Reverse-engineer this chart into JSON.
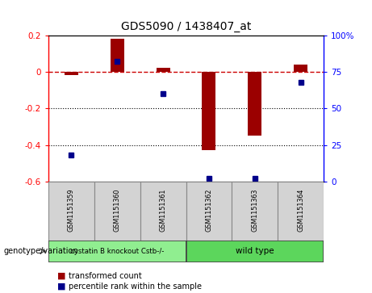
{
  "title": "GDS5090 / 1438407_at",
  "samples": [
    "GSM1151359",
    "GSM1151360",
    "GSM1151361",
    "GSM1151362",
    "GSM1151363",
    "GSM1151364"
  ],
  "red_values": [
    -0.02,
    0.18,
    0.02,
    -0.43,
    -0.35,
    0.04
  ],
  "blue_values_pct": [
    18,
    82,
    60,
    2,
    2,
    68
  ],
  "ylim_left": [
    -0.6,
    0.2
  ],
  "ylim_right": [
    0,
    100
  ],
  "yticks_left": [
    0.2,
    0.0,
    -0.2,
    -0.4,
    -0.6
  ],
  "yticks_right": [
    0,
    25,
    50,
    75,
    100
  ],
  "ytick_labels_left": [
    "0.2",
    "0",
    "-0.2",
    "-0.4",
    "-0.6"
  ],
  "ytick_labels_right": [
    "0",
    "25",
    "50",
    "75",
    "100%"
  ],
  "group1_label": "cystatin B knockout Cstb-/-",
  "group2_label": "wild type",
  "group1_indices": [
    0,
    1,
    2
  ],
  "group2_indices": [
    3,
    4,
    5
  ],
  "group1_color": "#90EE90",
  "group2_color": "#5CD65C",
  "bar_color": "#9B0000",
  "dot_color": "#00008B",
  "label_red": "transformed count",
  "label_blue": "percentile rank within the sample",
  "genotype_label": "genotype/variation",
  "hline_color": "#CC0000",
  "dotted_line_color": "black",
  "sample_bg_color": "#D3D3D3",
  "bar_width": 0.3
}
